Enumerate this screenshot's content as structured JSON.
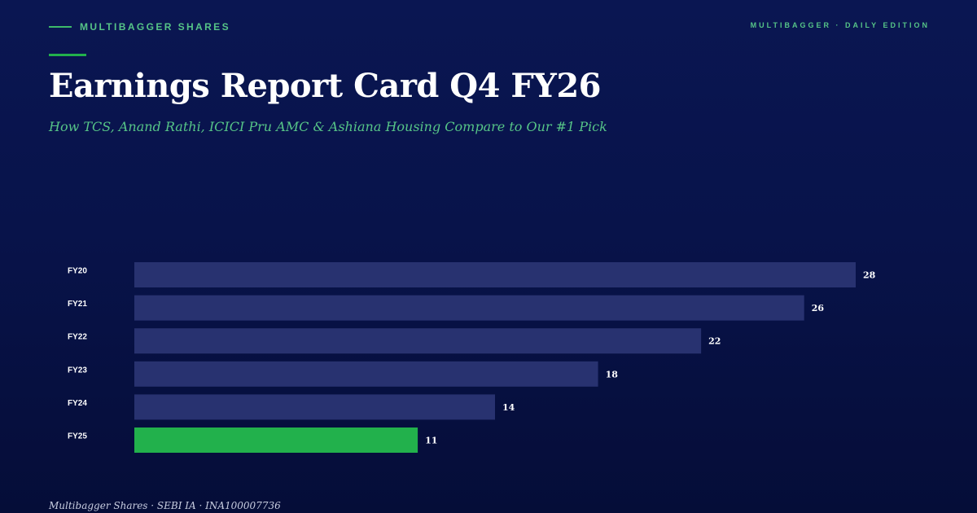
{
  "brand": "MULTIBAGGER SHARES",
  "edition": "MULTIBAGGER · DAILY EDITION",
  "title": "Earnings Report Card Q4 FY26",
  "subtitle": "How TCS, Anand Rathi, ICICI Pru AMC & Ashiana Housing Compare to Our #1 Pick",
  "footer": "Multibagger Shares · SEBI IA · INA100007736",
  "colors": {
    "background": "#0a1652",
    "accent": "#22b14c",
    "bar": "#283270",
    "highlight_bar": "#22b14c",
    "subtitle": "#56c487"
  },
  "chart_data": {
    "type": "bar",
    "orientation": "horizontal",
    "categories": [
      "FY20",
      "FY21",
      "FY22",
      "FY23",
      "FY24",
      "FY25"
    ],
    "values": [
      28,
      26,
      22,
      18,
      14,
      11
    ],
    "highlight_index": 5,
    "xlim": [
      0,
      28
    ],
    "grid": false,
    "legend": "none",
    "title": "",
    "xlabel": "",
    "ylabel": ""
  }
}
